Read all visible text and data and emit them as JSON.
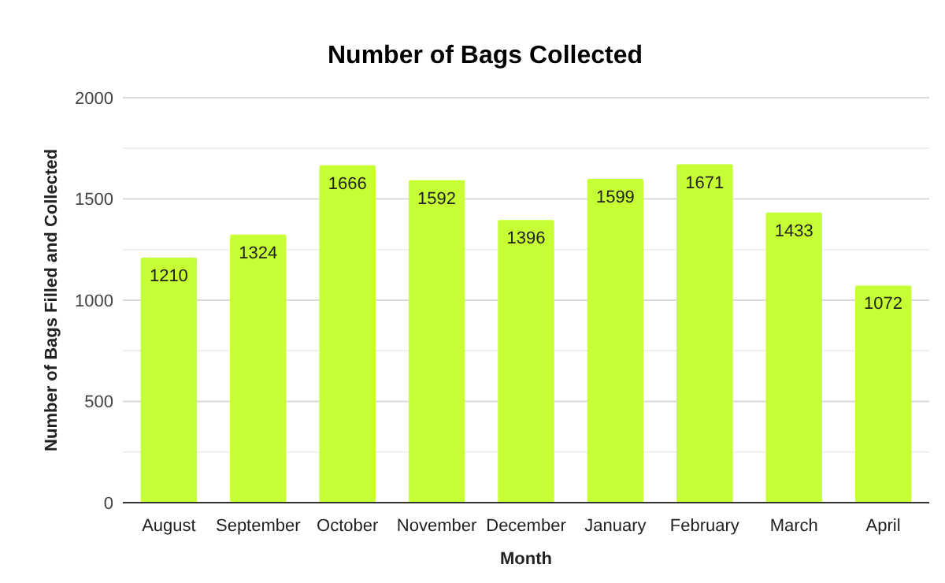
{
  "chart_data": {
    "type": "bar",
    "title": "Number of Bags Collected",
    "xlabel": "Month",
    "ylabel": "Number of Bags Filled and Collected",
    "categories": [
      "August",
      "September",
      "October",
      "November",
      "December",
      "January",
      "February",
      "March",
      "April"
    ],
    "values": [
      1210,
      1324,
      1666,
      1592,
      1396,
      1599,
      1671,
      1433,
      1072
    ],
    "color": "#c6ff33",
    "ylim": [
      0,
      2000
    ],
    "yticks": [
      0,
      {
        "value": 250,
        "label": null
      },
      500,
      {
        "value": 750,
        "label": null
      },
      1000,
      {
        "value": 1250,
        "label": null
      },
      1500,
      {
        "value": 1750,
        "label": null
      },
      2000
    ],
    "grid": true,
    "data_labels": true
  }
}
